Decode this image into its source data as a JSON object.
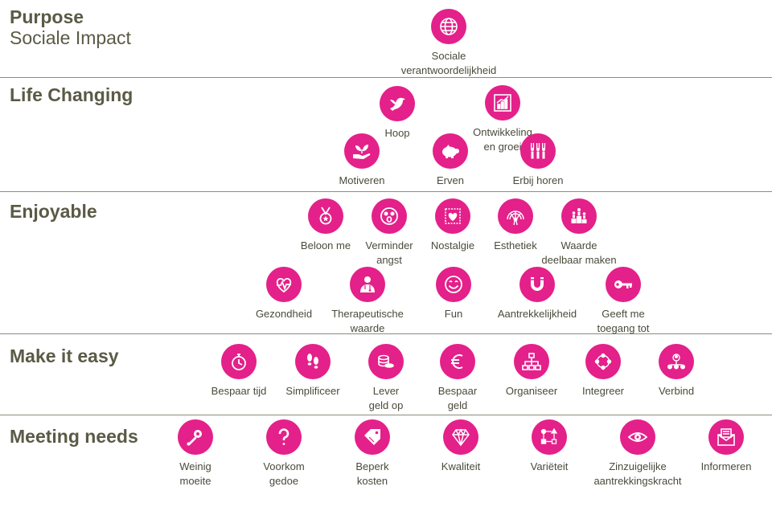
{
  "sections": {
    "purpose": {
      "title": "Purpose",
      "subtitle": "Sociale Impact"
    },
    "life_changing": {
      "title": "Life Changing"
    },
    "enjoyable": {
      "title": "Enjoyable"
    },
    "make_it_easy": {
      "title": "Make it easy"
    },
    "meeting_needs": {
      "title": "Meeting needs"
    }
  },
  "items": {
    "purpose": [
      {
        "label": "Sociale\nverantwoordelijkheid",
        "icon": "globe-icon"
      }
    ],
    "life_changing": [
      {
        "label": "Hoop",
        "icon": "bird-icon"
      },
      {
        "label": "Ontwikkeling\nen groei",
        "icon": "growth-chart-icon"
      },
      {
        "label": "Motiveren",
        "icon": "hand-plant-icon"
      },
      {
        "label": "Erven",
        "icon": "piggy-bank-icon"
      },
      {
        "label": "Erbij horen",
        "icon": "group-raised-hands-icon"
      }
    ],
    "enjoyable": [
      {
        "label": "Beloon me",
        "icon": "medal-icon"
      },
      {
        "label": "Verminder\nangst",
        "icon": "scared-face-icon"
      },
      {
        "label": "Nostalgie",
        "icon": "stamp-heart-icon"
      },
      {
        "label": "Esthetiek",
        "icon": "peacock-icon"
      },
      {
        "label": "Waarde\ndeelbaar maken",
        "icon": "podium-icon"
      },
      {
        "label": "Gezondheid",
        "icon": "heart-pulse-icon"
      },
      {
        "label": "Therapeutische\nwaarde",
        "icon": "doctor-icon"
      },
      {
        "label": "Fun",
        "icon": "smiley-icon"
      },
      {
        "label": "Aantrekkelijkheid",
        "icon": "magnet-icon"
      },
      {
        "label": "Geeft me\ntoegang tot",
        "icon": "key-icon"
      }
    ],
    "make_it_easy": [
      {
        "label": "Bespaar tijd",
        "icon": "stopwatch-icon"
      },
      {
        "label": "Simplificeer",
        "icon": "footsteps-icon"
      },
      {
        "label": "Lever\ngeld op",
        "icon": "coins-icon"
      },
      {
        "label": "Bespaar\ngeld",
        "icon": "euro-icon"
      },
      {
        "label": "Organiseer",
        "icon": "org-chart-icon"
      },
      {
        "label": "Integreer",
        "icon": "integrate-icon"
      },
      {
        "label": "Verbind",
        "icon": "network-icon"
      }
    ],
    "meeting_needs": [
      {
        "label": "Weinig\nmoeite",
        "icon": "rattle-icon"
      },
      {
        "label": "Voorkom\ngedoe",
        "icon": "question-mark-icon"
      },
      {
        "label": "Beperk\nkosten",
        "icon": "price-tag-icon"
      },
      {
        "label": "Kwaliteit",
        "icon": "diamond-icon"
      },
      {
        "label": "Variëteit",
        "icon": "variety-icon"
      },
      {
        "label": "Zinzuigelijke\naantrekkingskracht",
        "icon": "eye-icon"
      },
      {
        "label": "Informeren",
        "icon": "envelope-icon"
      }
    ]
  },
  "colors": {
    "accent": "#e4208a",
    "heading": "#5a5a46",
    "divider": "#8c8c7c"
  }
}
